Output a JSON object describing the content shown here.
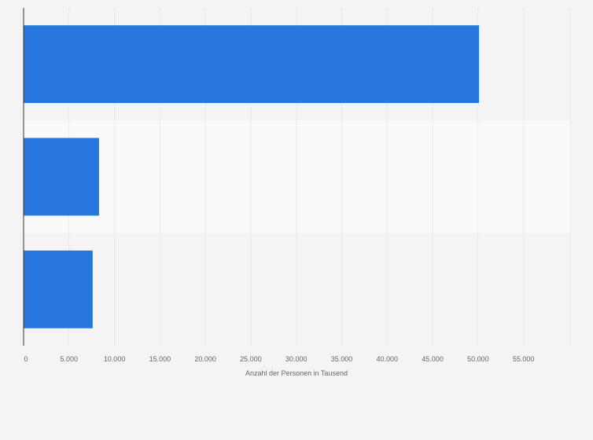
{
  "chart_data": {
    "type": "bar",
    "orientation": "horizontal",
    "categories": [
      "",
      "",
      ""
    ],
    "values": [
      50100,
      8300,
      7600
    ],
    "xlabel": "Anzahl der Personen in Tausend",
    "xlim": [
      0,
      60000
    ],
    "xticks": [
      0,
      5000,
      10000,
      15000,
      20000,
      25000,
      30000,
      35000,
      40000,
      45000,
      50000,
      55000
    ],
    "tick_labels": [
      "0",
      "5.000",
      "10.000",
      "15.000",
      "20.000",
      "25.000",
      "30.000",
      "35.000",
      "40.000",
      "45.000",
      "50.000",
      "55.000"
    ],
    "grid": true,
    "legend": "none",
    "colors": {
      "bar": "#2776dd",
      "band_light": "#fafafa",
      "band_dark": "#f4f4f4",
      "grid": "#dcdcdc",
      "axis": "#333333",
      "text": "#666666"
    }
  }
}
